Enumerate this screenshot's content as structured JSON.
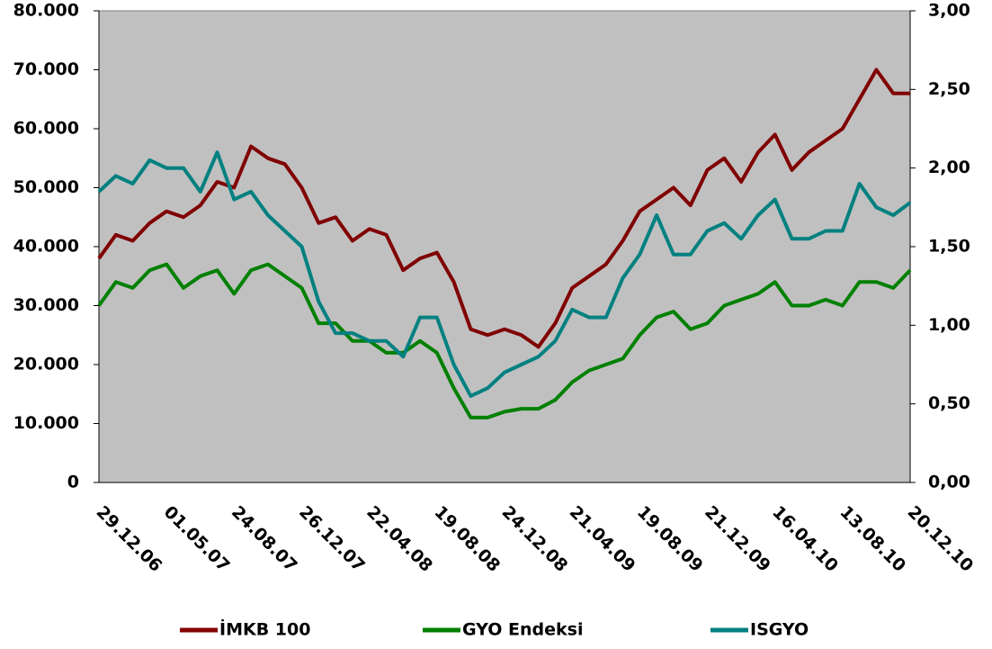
{
  "chart_data": {
    "type": "line",
    "categories": [
      "29.12.06",
      null,
      null,
      null,
      "01.05.07",
      null,
      null,
      null,
      "24.08.07",
      null,
      null,
      null,
      "26.12.07",
      null,
      null,
      null,
      "22.04.08",
      null,
      null,
      null,
      "19.08.08",
      null,
      null,
      null,
      "24.12.08",
      null,
      null,
      null,
      "21.04.09",
      null,
      null,
      null,
      "19.08.09",
      null,
      null,
      null,
      "21.12.09",
      null,
      null,
      null,
      "16.04.10",
      null,
      null,
      null,
      "13.08.10",
      null,
      null,
      null,
      "20.12.10"
    ],
    "series": [
      {
        "name": "İMKB 100",
        "color": "#800000",
        "axis": "y",
        "values": [
          38000,
          42000,
          41000,
          44000,
          46000,
          45000,
          47000,
          51000,
          50000,
          57000,
          55000,
          54000,
          50000,
          44000,
          45000,
          41000,
          43000,
          42000,
          36000,
          38000,
          39000,
          34000,
          26000,
          25000,
          26000,
          25000,
          23000,
          27000,
          33000,
          35000,
          37000,
          41000,
          46000,
          48000,
          50000,
          47000,
          53000,
          55000,
          51000,
          56000,
          59000,
          53000,
          56000,
          58000,
          60000,
          65000,
          70000,
          66000,
          66000
        ]
      },
      {
        "name": "GYO Endeksi",
        "color": "#008000",
        "axis": "y",
        "values": [
          30000,
          34000,
          33000,
          36000,
          37000,
          33000,
          35000,
          36000,
          32000,
          36000,
          37000,
          35000,
          33000,
          27000,
          27000,
          24000,
          24000,
          22000,
          22000,
          24000,
          22000,
          16000,
          11000,
          11000,
          12000,
          12500,
          12500,
          14000,
          17000,
          19000,
          20000,
          21000,
          25000,
          28000,
          29000,
          26000,
          27000,
          30000,
          31000,
          32000,
          34000,
          30000,
          30000,
          31000,
          30000,
          34000,
          34000,
          33000,
          36000
        ]
      },
      {
        "name": "ISGYO",
        "color": "#008080",
        "axis": "y2",
        "values": [
          1.85,
          1.95,
          1.9,
          2.05,
          2.0,
          2.0,
          1.85,
          2.1,
          1.8,
          1.85,
          1.7,
          1.6,
          1.5,
          1.15,
          0.95,
          0.95,
          0.9,
          0.9,
          0.8,
          1.05,
          1.05,
          0.75,
          0.55,
          0.6,
          0.7,
          0.75,
          0.8,
          0.9,
          1.1,
          1.05,
          1.05,
          1.3,
          1.45,
          1.7,
          1.45,
          1.45,
          1.6,
          1.65,
          1.55,
          1.7,
          1.8,
          1.55,
          1.55,
          1.6,
          1.6,
          1.9,
          1.75,
          1.7,
          1.78
        ]
      }
    ],
    "ylim": [
      0,
      80000
    ],
    "yticks": [
      0,
      {
        "value": 10000,
        "label": "10.000"
      },
      {
        "value": 20000,
        "label": "20.000"
      },
      {
        "value": 30000,
        "label": "30.000"
      },
      {
        "value": 40000,
        "label": "40.000"
      },
      {
        "value": 50000,
        "label": "50.000"
      },
      {
        "value": 60000,
        "label": "60.000"
      },
      {
        "value": 70000,
        "label": "70.000"
      },
      {
        "value": 80000,
        "label": "80.000"
      }
    ],
    "y2lim": [
      0,
      3
    ],
    "y2ticks": [
      {
        "value": 0,
        "label": "0,00"
      },
      {
        "value": 0.5,
        "label": "0,50"
      },
      {
        "value": 1,
        "label": "1,00"
      },
      {
        "value": 1.5,
        "label": "1,50"
      },
      {
        "value": 2,
        "label": "2,00"
      },
      {
        "value": 2.5,
        "label": "2,50"
      },
      {
        "value": 3,
        "label": "3,00"
      }
    ],
    "legend": "bottom",
    "plot_background": "#c0c0c0"
  }
}
